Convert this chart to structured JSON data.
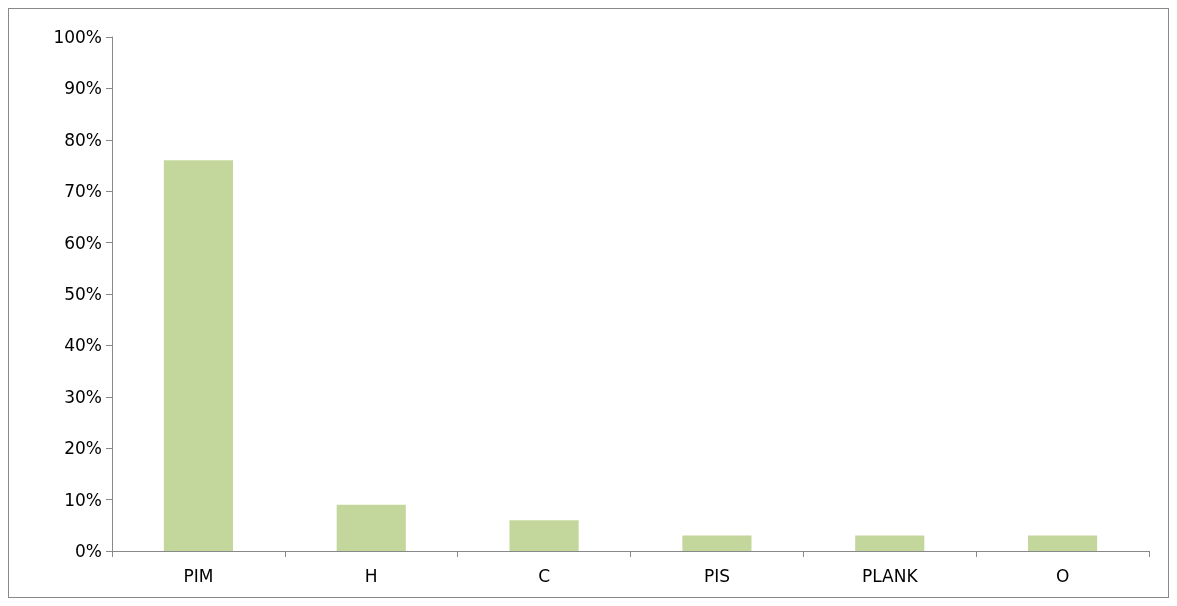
{
  "chart_data": {
    "type": "bar",
    "categories": [
      "PIM",
      "H",
      "C",
      "PIS",
      "PLANK",
      "O"
    ],
    "values": [
      76,
      9,
      6,
      3,
      3,
      3
    ],
    "color": "#c3d69b",
    "ylim": [
      0,
      100
    ],
    "yticks": [
      {
        "value": 0,
        "label": "0%"
      },
      {
        "value": 10,
        "label": "10%"
      },
      {
        "value": 20,
        "label": "20%"
      },
      {
        "value": 30,
        "label": "30%"
      },
      {
        "value": 40,
        "label": "40%"
      },
      {
        "value": 50,
        "label": "50%"
      },
      {
        "value": 60,
        "label": "60%"
      },
      {
        "value": 70,
        "label": "70%"
      },
      {
        "value": 80,
        "label": "80%"
      },
      {
        "value": 90,
        "label": "90%"
      },
      {
        "value": 100,
        "label": "100%"
      }
    ],
    "grid": false
  }
}
